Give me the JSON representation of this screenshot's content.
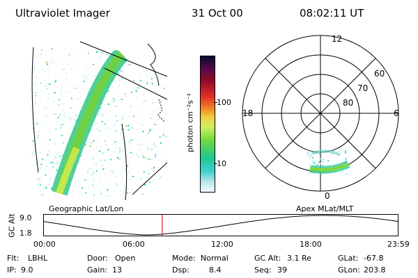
{
  "header": {
    "instrument": "Ultraviolet Imager",
    "date": "31 Oct 00",
    "time": "08:02:11 UT"
  },
  "colorbar": {
    "unit_label": "photon cm⁻²s⁻¹",
    "ticks": [
      "100",
      "10"
    ],
    "colors": [
      "#0a0a2a",
      "#2a0a3a",
      "#5a0a4a",
      "#8a0a2a",
      "#c0102a",
      "#e0302a",
      "#f07020",
      "#f0a020",
      "#f0e050",
      "#d0f060",
      "#90e040",
      "#40d040",
      "#20c890",
      "#20d0d0",
      "#90e0e0",
      "#e8f4f4"
    ]
  },
  "geo_panel": {
    "label": "Geographic Lat/Lon"
  },
  "polar_panel": {
    "label": "Apex MLat/MLT",
    "mlt_labels": {
      "top": "12",
      "bottom": "0",
      "left": "18",
      "right": "6"
    },
    "lat_labels": [
      "60",
      "70",
      "80"
    ]
  },
  "timeline": {
    "ylabel": "GC Alt",
    "y_top": "9.0",
    "y_bottom": "1.8",
    "x_ticks": [
      "00:00",
      "06:00",
      "12:00",
      "18:00",
      "23:59"
    ],
    "current_time_fraction": 0.335
  },
  "info": {
    "row1": [
      {
        "label": "Flt:",
        "value": "LBHL"
      },
      {
        "label": "Door:",
        "value": "Open"
      },
      {
        "label": "Mode:",
        "value": "Normal"
      },
      {
        "label": "GC Alt:",
        "value": "3.1 Re"
      },
      {
        "label": "GLat:",
        "value": "-67.8"
      }
    ],
    "row2": [
      {
        "label": "IP:",
        "value": "9.0"
      },
      {
        "label": "Gain:",
        "value": "13"
      },
      {
        "label": "Dsp:",
        "value": "8.4"
      },
      {
        "label": "Seq:",
        "value": "39"
      },
      {
        "label": "GLon:",
        "value": "203.8"
      }
    ]
  }
}
